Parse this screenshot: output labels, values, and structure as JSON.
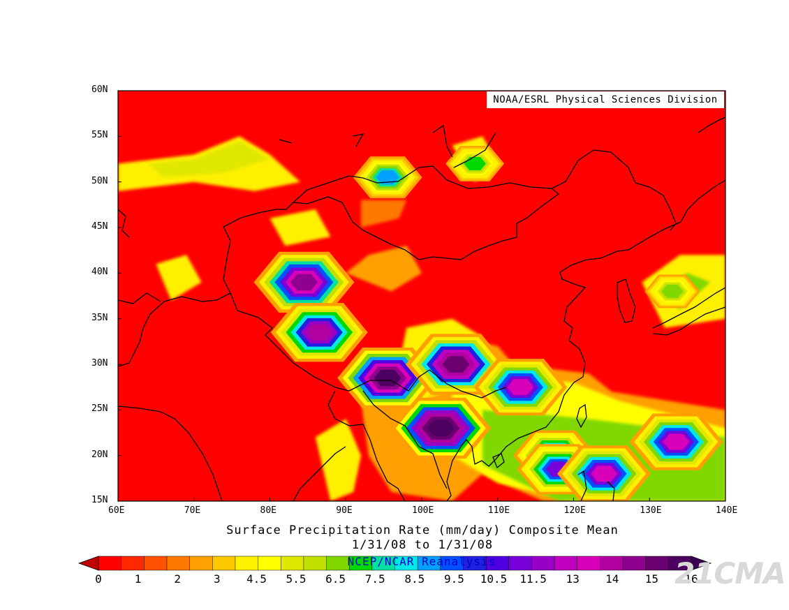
{
  "credit": "NOAA/ESRL Physical Sciences Division",
  "title_line1": "Surface Precipitation Rate (mm/day) Composite Mean",
  "title_line2": "1/31/08  to 1/31/08",
  "source_label": "NCEP/NCAR Reanalysis",
  "watermark": "21CMA",
  "map": {
    "projection": "lat-lon",
    "lon_range": [
      60,
      140
    ],
    "lat_range": [
      15,
      60
    ],
    "lon_ticks": [
      "60E",
      "70E",
      "80E",
      "90E",
      "100E",
      "110E",
      "120E",
      "130E",
      "140E"
    ],
    "lat_ticks": [
      "15N",
      "20N",
      "25N",
      "30N",
      "35N",
      "40N",
      "45N",
      "50N",
      "55N",
      "60N"
    ],
    "background_value_mm_day": 0
  },
  "colorbar": {
    "labels": [
      "0",
      "1",
      "2",
      "3",
      "4.5",
      "5.5",
      "6.5",
      "7.5",
      "8.5",
      "9.5",
      "10.5",
      "11.5",
      "13",
      "14",
      "15",
      "16"
    ],
    "colors": [
      "#ff0000",
      "#ff2800",
      "#ff5200",
      "#ff7800",
      "#ffa000",
      "#ffc800",
      "#fff000",
      "#ffff00",
      "#e0e800",
      "#c0e000",
      "#80d800",
      "#00d800",
      "#00e0a0",
      "#00e8e8",
      "#00a0ff",
      "#0050ff",
      "#2020e0",
      "#5000e0",
      "#7800d8",
      "#9800c8",
      "#c000c0",
      "#d800b8",
      "#b000a0",
      "#900090",
      "#6a0070",
      "#4c0060"
    ],
    "extend": "both"
  },
  "chart_data": {
    "type": "heatmap",
    "title": "Surface Precipitation Rate (mm/day) Composite Mean",
    "subtitle": "1/31/08  to 1/31/08",
    "xlabel": "",
    "ylabel": "",
    "xlim": [
      60,
      140
    ],
    "ylim": [
      15,
      60
    ],
    "units": "mm/day",
    "features": [
      {
        "lon": 102.5,
        "lat": 23,
        "peak": 16
      },
      {
        "lon": 95.5,
        "lat": 28.5,
        "peak": 15
      },
      {
        "lon": 104.5,
        "lat": 30,
        "peak": 14
      },
      {
        "lon": 84.5,
        "lat": 39,
        "peak": 13
      },
      {
        "lon": 86.5,
        "lat": 33.5,
        "peak": 11.5
      },
      {
        "lon": 113,
        "lat": 27.5,
        "peak": 11
      },
      {
        "lon": 133.5,
        "lat": 21.5,
        "peak": 11
      },
      {
        "lon": 117.5,
        "lat": 20,
        "peak": 9.5
      },
      {
        "lon": 118,
        "lat": 18.5,
        "peak": 9.5
      },
      {
        "lon": 124,
        "lat": 18,
        "peak": 11
      },
      {
        "lon": 95.5,
        "lat": 50.5,
        "peak": 7.5
      },
      {
        "lon": 107,
        "lat": 52,
        "peak": 6
      },
      {
        "lon": 133,
        "lat": 38,
        "peak": 5.5
      }
    ]
  }
}
